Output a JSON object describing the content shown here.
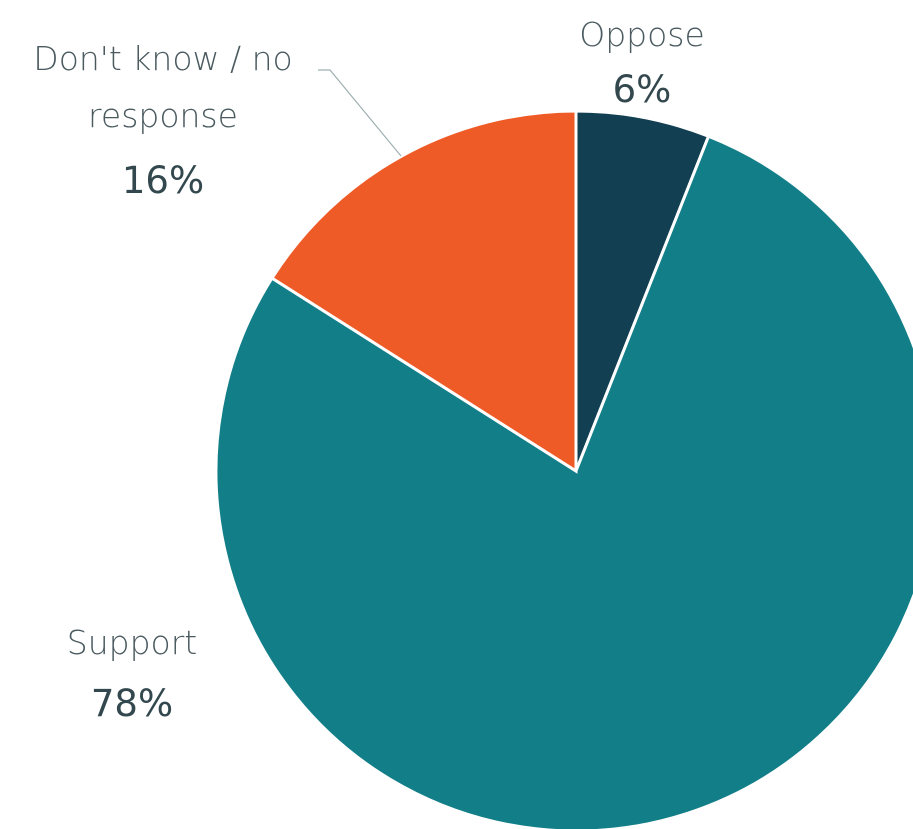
{
  "chart_data": {
    "type": "pie",
    "title": "",
    "slices": [
      {
        "label": "Oppose",
        "value": 6,
        "value_label": "6%",
        "color": "#123f52"
      },
      {
        "label": "Support",
        "value": 78,
        "value_label": "78%",
        "color": "#127e88"
      },
      {
        "label": "Don't know / no response",
        "value": 16,
        "value_label": "16%",
        "color": "#ef5b27"
      }
    ],
    "start_angle": "12 o'clock",
    "direction": "clockwise",
    "legend": "none",
    "labels": "outside slices with category and percentage"
  }
}
